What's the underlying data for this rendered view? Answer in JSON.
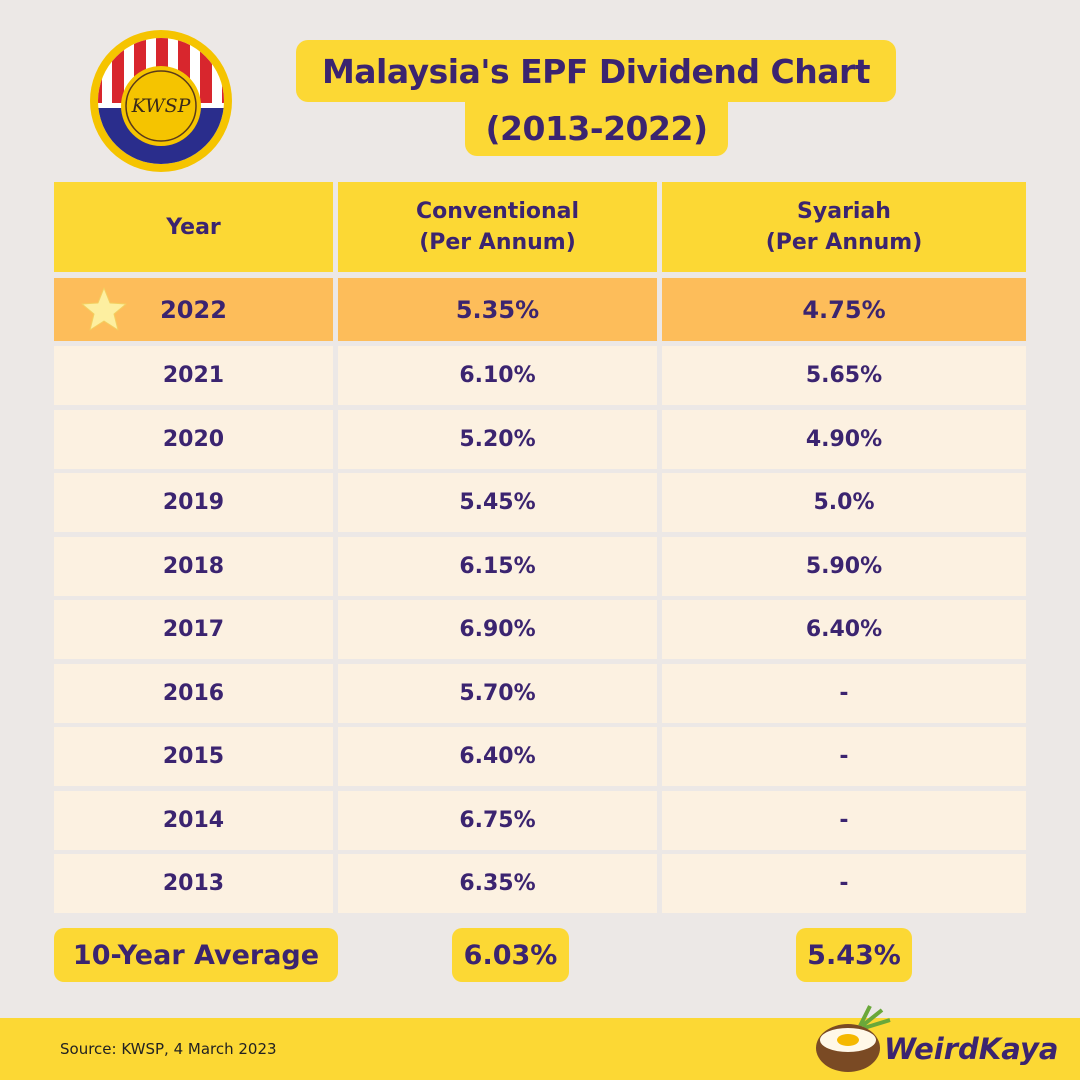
{
  "logo": {
    "text": "KWSP"
  },
  "header": {
    "title": [
      "Malaysia's EPF Dividend Chart",
      "(2013-2022)"
    ]
  },
  "table": {
    "headers": [
      [
        "Year"
      ],
      [
        "Conventional",
        "(Per Annum)"
      ],
      [
        "Syariah",
        "(Per Annum)"
      ]
    ],
    "rows": [
      [
        "2022",
        "5.35%",
        "4.75%"
      ],
      [
        "2021",
        "6.10%",
        "5.65%"
      ],
      [
        "2020",
        "5.20%",
        "4.90%"
      ],
      [
        "2019",
        "5.45%",
        "5.0%"
      ],
      [
        "2018",
        "6.15%",
        "5.90%"
      ],
      [
        "2017",
        "6.90%",
        "6.40%"
      ],
      [
        "2016",
        "5.70%",
        "-"
      ],
      [
        "2015",
        "6.40%",
        "-"
      ],
      [
        "2014",
        "6.75%",
        "-"
      ],
      [
        "2013",
        "6.35%",
        "-"
      ]
    ],
    "average": [
      "10-Year Average",
      "6.03%",
      "5.43%"
    ]
  },
  "footer": {
    "source": "Source: KWSP, 4 March 2023",
    "brand": "WeirdKaya"
  }
}
